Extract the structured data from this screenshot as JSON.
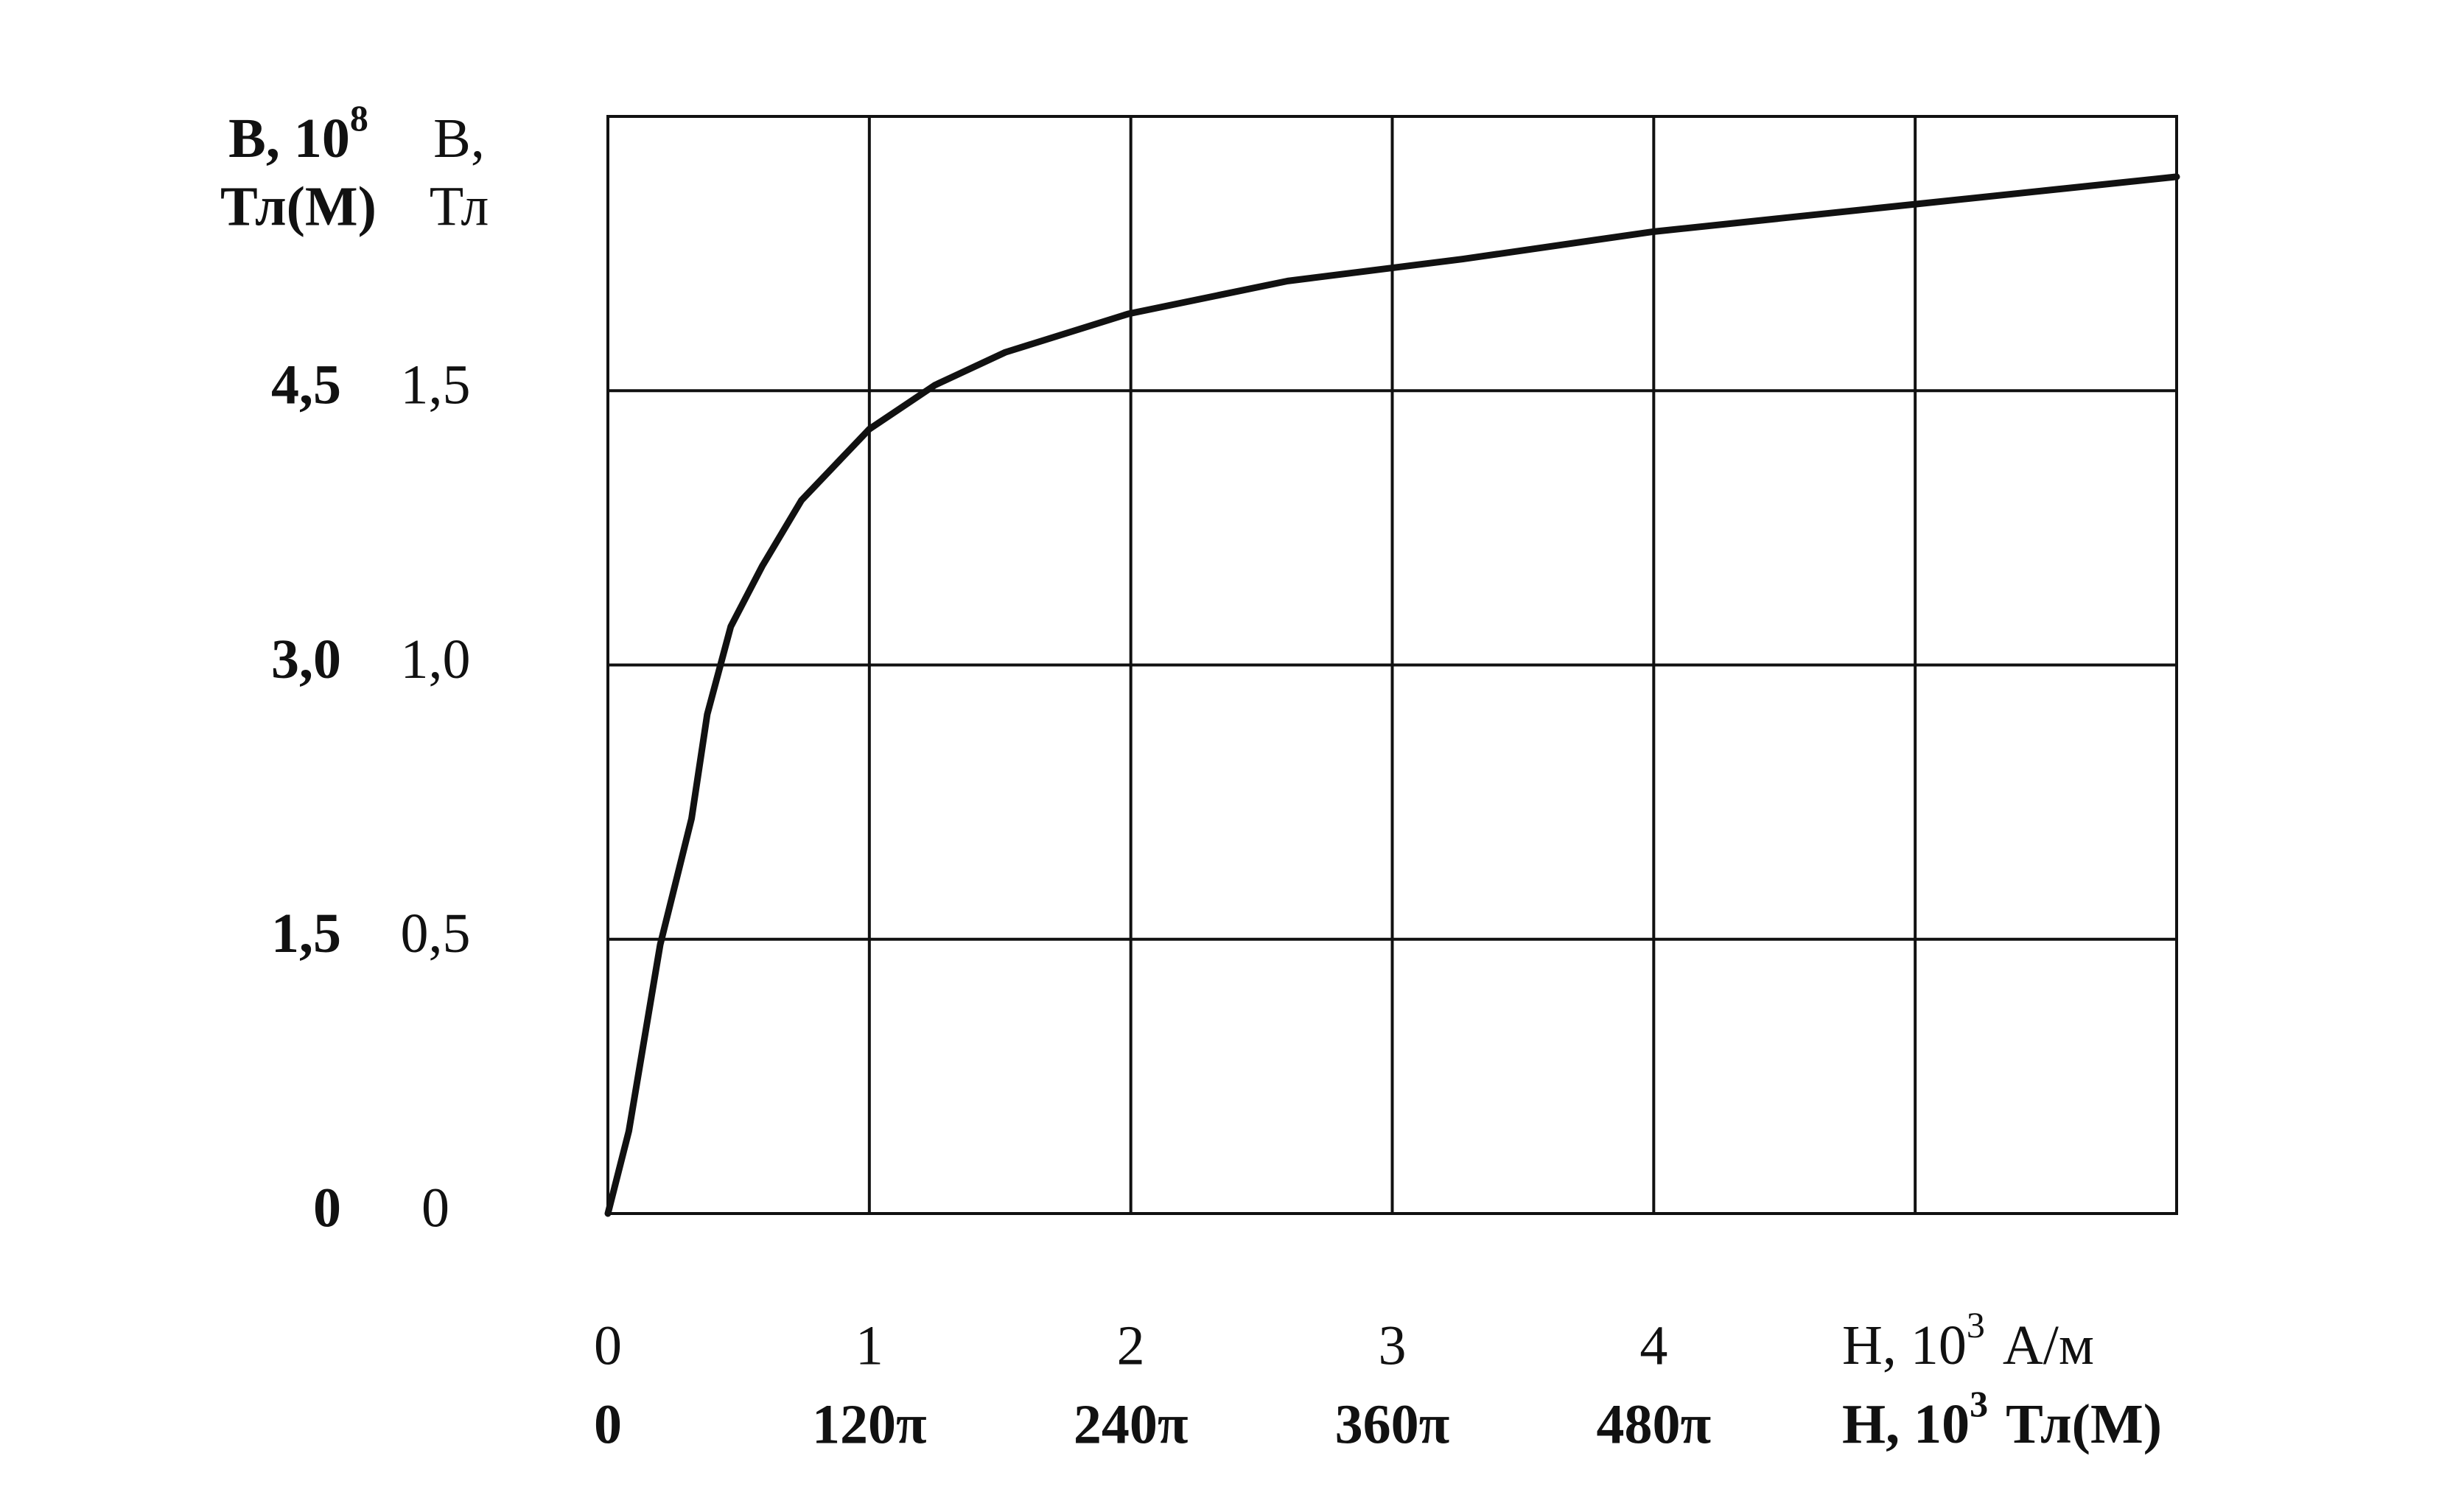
{
  "chart_data": {
    "type": "line",
    "xlabel": {
      "base": "H, 10",
      "sup": "3",
      "unit": "А/м"
    },
    "x2label": {
      "base": "H, 10",
      "sup": "3",
      "unit": "Тл(М)"
    },
    "ylabel": {
      "base": "B,",
      "unit": "Тл"
    },
    "y2label": {
      "base": "B, 10",
      "sup": "8",
      "unit": "Тл(М)"
    },
    "xlim": [
      0,
      6
    ],
    "xticks": [
      0,
      1,
      2,
      3,
      4
    ],
    "xgrid": [
      0,
      1,
      2,
      3,
      4,
      5,
      6
    ],
    "x2lim": [
      0,
      2261.9467
    ],
    "x2ticks": [
      0,
      {
        "value": 376.9911,
        "label": "120π"
      },
      {
        "value": 753.9822,
        "label": "240π"
      },
      {
        "value": 1130.9734,
        "label": "360π"
      },
      {
        "value": 1507.9645,
        "label": "480π"
      }
    ],
    "ylim": [
      0,
      2
    ],
    "yticks": [
      0,
      {
        "value": 0.5,
        "label": "0,5"
      },
      {
        "value": 1.0,
        "label": "1,0"
      },
      {
        "value": 1.5,
        "label": "1,5"
      }
    ],
    "ygrid": [
      0,
      0.5,
      1.0,
      1.5,
      2.0
    ],
    "y2lim": [
      0,
      6
    ],
    "y2ticks": [
      0,
      {
        "value": 1.5,
        "label": "1,5"
      },
      {
        "value": 3.0,
        "label": "3,0"
      },
      {
        "value": 4.5,
        "label": "4,5"
      }
    ],
    "grid": true,
    "series": [
      {
        "color": "#111111",
        "x": [
          0,
          0.08,
          0.2,
          0.32,
          0.38,
          0.47,
          0.59,
          0.74,
          1.0,
          1.25,
          1.52,
          1.99,
          2.6,
          3.27,
          4.0,
          5.0,
          6.0
        ],
        "values": [
          0,
          0.15,
          0.49,
          0.72,
          0.91,
          1.07,
          1.18,
          1.3,
          1.43,
          1.51,
          1.57,
          1.64,
          1.7,
          1.74,
          1.79,
          1.84,
          1.89
        ]
      }
    ]
  }
}
